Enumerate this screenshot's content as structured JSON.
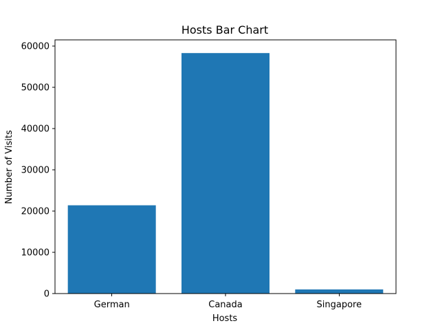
{
  "chart_data": {
    "type": "bar",
    "title": "Hosts Bar Chart",
    "xlabel": "Hosts",
    "ylabel": "Number of Visits",
    "categories": [
      "German",
      "Canada",
      "Singapore"
    ],
    "values": [
      21400,
      58300,
      1000
    ],
    "ylim": [
      0,
      61500
    ],
    "yticks": [
      0,
      10000,
      20000,
      30000,
      40000,
      50000,
      60000
    ],
    "grid": false,
    "legend": "none",
    "bar_color": "#1f77b4"
  }
}
